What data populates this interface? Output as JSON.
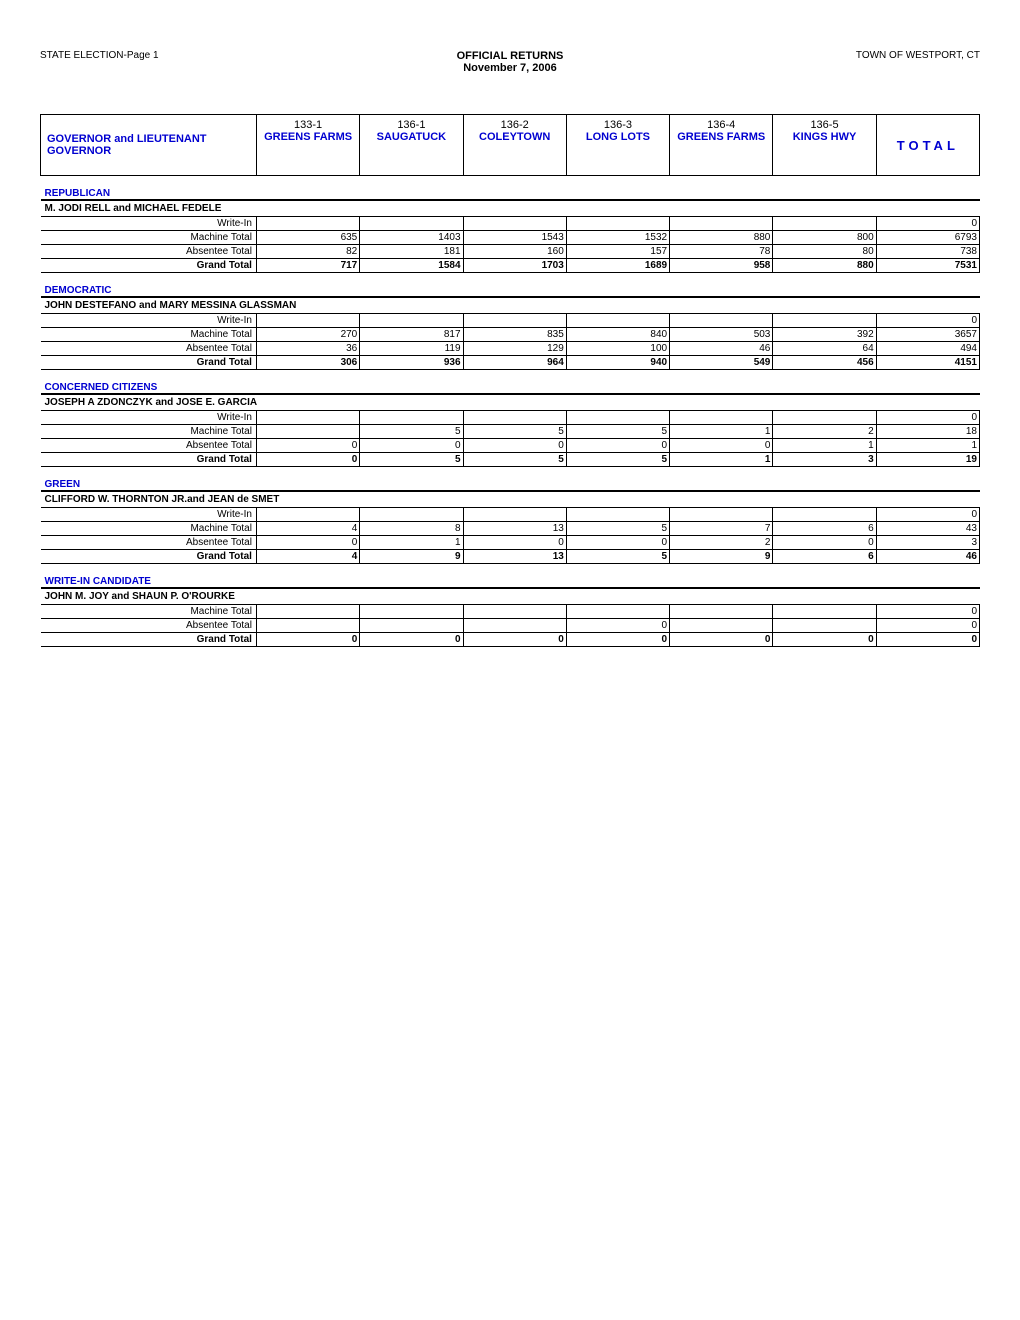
{
  "header": {
    "left": "STATE ELECTION-Page 1",
    "title": "OFFICIAL RETURNS",
    "date": "November 7, 2006",
    "right": "TOWN OF WESTPORT, CT"
  },
  "office": "GOVERNOR and LIEUTENANT GOVERNOR",
  "total_label": "TOTAL",
  "districts": [
    {
      "num": "133-1",
      "name": "GREENS FARMS"
    },
    {
      "num": "136-1",
      "name": "SAUGATUCK"
    },
    {
      "num": "136-2",
      "name": "COLEYTOWN"
    },
    {
      "num": "136-3",
      "name": "LONG LOTS"
    },
    {
      "num": "136-4",
      "name": "GREENS FARMS"
    },
    {
      "num": "136-5",
      "name": "KINGS HWY"
    }
  ],
  "row_labels": {
    "writein": "Write-In",
    "machine": "Machine Total",
    "absentee": "Absentee Total",
    "grand": "Grand Total"
  },
  "parties": [
    {
      "party": "REPUBLICAN",
      "candidate": "M. JODI RELL and MICHAEL FEDELE",
      "rows": [
        {
          "type": "writein",
          "vals": [
            "",
            "",
            "",
            "",
            "",
            ""
          ],
          "total": "0"
        },
        {
          "type": "machine",
          "vals": [
            "635",
            "1403",
            "1543",
            "1532",
            "880",
            "800"
          ],
          "total": "6793"
        },
        {
          "type": "absentee",
          "vals": [
            "82",
            "181",
            "160",
            "157",
            "78",
            "80"
          ],
          "total": "738"
        },
        {
          "type": "grand",
          "vals": [
            "717",
            "1584",
            "1703",
            "1689",
            "958",
            "880"
          ],
          "total": "7531"
        }
      ]
    },
    {
      "party": "DEMOCRATIC",
      "candidate": "JOHN DESTEFANO and MARY MESSINA GLASSMAN",
      "rows": [
        {
          "type": "writein",
          "vals": [
            "",
            "",
            "",
            "",
            "",
            ""
          ],
          "total": "0"
        },
        {
          "type": "machine",
          "vals": [
            "270",
            "817",
            "835",
            "840",
            "503",
            "392"
          ],
          "total": "3657"
        },
        {
          "type": "absentee",
          "vals": [
            "36",
            "119",
            "129",
            "100",
            "46",
            "64"
          ],
          "total": "494"
        },
        {
          "type": "grand",
          "vals": [
            "306",
            "936",
            "964",
            "940",
            "549",
            "456"
          ],
          "total": "4151"
        }
      ]
    },
    {
      "party": "CONCERNED CITIZENS",
      "candidate": "JOSEPH A ZDONCZYK and JOSE E. GARCIA",
      "rows": [
        {
          "type": "writein",
          "vals": [
            "",
            "",
            "",
            "",
            "",
            ""
          ],
          "total": "0"
        },
        {
          "type": "machine",
          "vals": [
            "",
            "5",
            "5",
            "5",
            "1",
            "2"
          ],
          "total": "18"
        },
        {
          "type": "absentee",
          "vals": [
            "0",
            "0",
            "0",
            "0",
            "0",
            "1"
          ],
          "total": "1"
        },
        {
          "type": "grand",
          "vals": [
            "0",
            "5",
            "5",
            "5",
            "1",
            "3"
          ],
          "total": "19"
        }
      ]
    },
    {
      "party": "GREEN",
      "candidate": "CLIFFORD W. THORNTON JR.and JEAN de SMET",
      "rows": [
        {
          "type": "writein",
          "vals": [
            "",
            "",
            "",
            "",
            "",
            ""
          ],
          "total": "0"
        },
        {
          "type": "machine",
          "vals": [
            "4",
            "8",
            "13",
            "5",
            "7",
            "6"
          ],
          "total": "43"
        },
        {
          "type": "absentee",
          "vals": [
            "0",
            "1",
            "0",
            "0",
            "2",
            "0"
          ],
          "total": "3"
        },
        {
          "type": "grand",
          "vals": [
            "4",
            "9",
            "13",
            "5",
            "9",
            "6"
          ],
          "total": "46"
        }
      ]
    },
    {
      "party": "WRITE-IN CANDIDATE",
      "candidate": "JOHN M. JOY and SHAUN P. O'ROURKE",
      "rows": [
        {
          "type": "machine",
          "vals": [
            "",
            "",
            "",
            "",
            "",
            ""
          ],
          "total": "0"
        },
        {
          "type": "absentee",
          "vals": [
            "",
            "",
            "",
            "0",
            "",
            ""
          ],
          "total": "0"
        },
        {
          "type": "grand",
          "vals": [
            "0",
            "0",
            "0",
            "0",
            "0",
            "0"
          ],
          "total": "0"
        }
      ]
    }
  ]
}
